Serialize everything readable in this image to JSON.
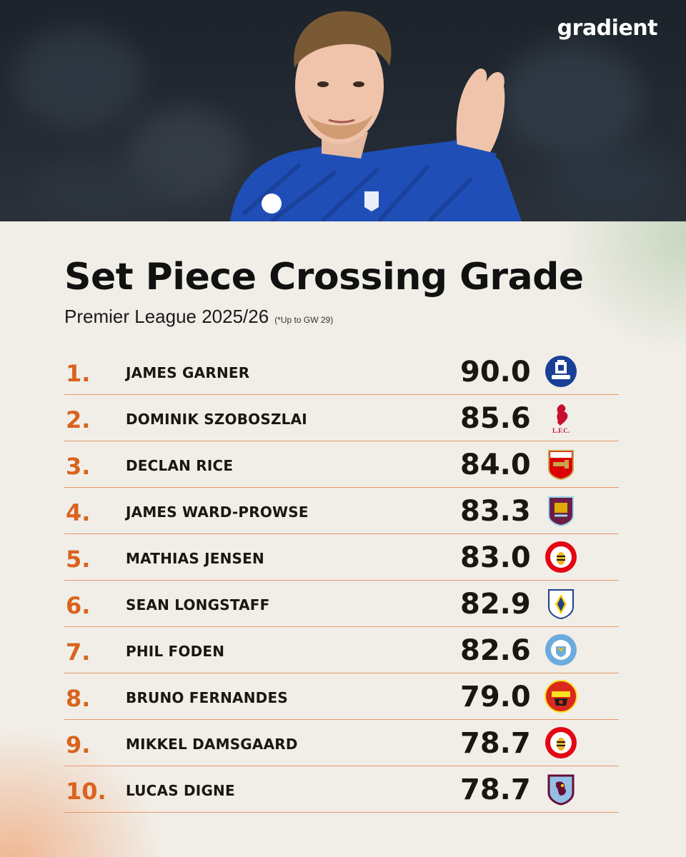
{
  "brand": {
    "name": "gradient"
  },
  "header": {
    "title": "Set Piece Crossing Grade",
    "subtitle": "Premier League 2025/26",
    "footnote": "(*Up to GW 29)"
  },
  "colors": {
    "accent_orange": "#d9631e",
    "divider": "#e59867",
    "text_dark": "#1a1610",
    "background": "#f1eee8"
  },
  "rankings": [
    {
      "rank": "1.",
      "name": "JAMES GARNER",
      "score": "90.0",
      "club_icon": "everton-crest-icon"
    },
    {
      "rank": "2.",
      "name": "DOMINIK SZOBOSZLAI",
      "score": "85.6",
      "club_icon": "liverpool-crest-icon",
      "club_text": "L.F.C."
    },
    {
      "rank": "3.",
      "name": "DECLAN RICE",
      "score": "84.0",
      "club_icon": "arsenal-crest-icon"
    },
    {
      "rank": "4.",
      "name": "JAMES WARD-PROWSE",
      "score": "83.3",
      "club_icon": "burnley-crest-icon"
    },
    {
      "rank": "5.",
      "name": "MATHIAS JENSEN",
      "score": "83.0",
      "club_icon": "brentford-crest-icon"
    },
    {
      "rank": "6.",
      "name": "SEAN LONGSTAFF",
      "score": "82.9",
      "club_icon": "leeds-crest-icon"
    },
    {
      "rank": "7.",
      "name": "PHIL FODEN",
      "score": "82.6",
      "club_icon": "man-city-crest-icon"
    },
    {
      "rank": "8.",
      "name": "BRUNO FERNANDES",
      "score": "79.0",
      "club_icon": "man-united-crest-icon"
    },
    {
      "rank": "9.",
      "name": "MIKKEL DAMSGAARD",
      "score": "78.7",
      "club_icon": "brentford-crest-icon"
    },
    {
      "rank": "10.",
      "name": "LUCAS DIGNE",
      "score": "78.7",
      "club_icon": "aston-villa-crest-icon"
    }
  ]
}
